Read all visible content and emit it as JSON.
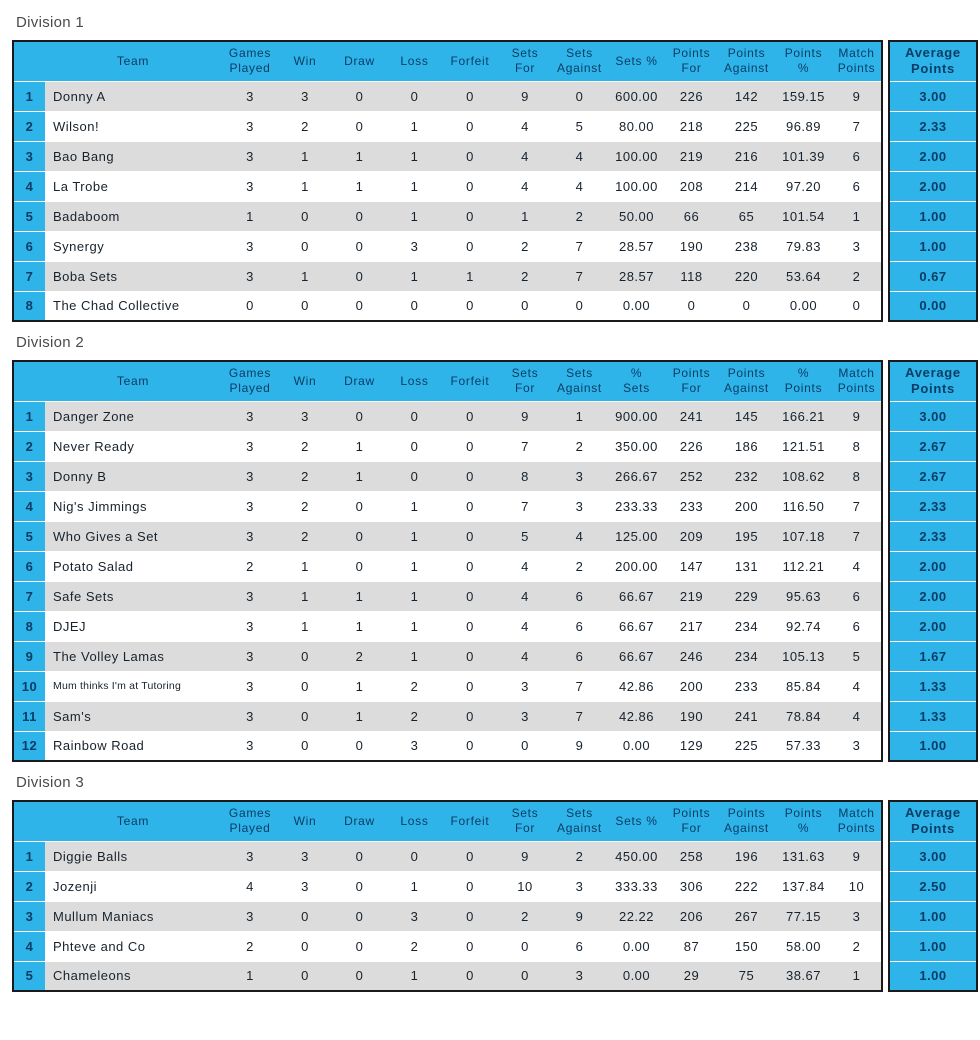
{
  "colors": {
    "accent_cyan": "#2FB4E9",
    "header_navy": "#0A3D66",
    "row_gray": "#DCDCDC",
    "row_white": "#FFFFFF",
    "table_border": "#1A1A1A",
    "cell_text": "#17222C",
    "title_gray": "#4A4A4A"
  },
  "divisions": [
    {
      "title": "Division 1",
      "rank_header": "",
      "columns": [
        "Team",
        "Games\nPlayed",
        "Win",
        "Draw",
        "Loss",
        "Forfeit",
        "Sets\nFor",
        "Sets\nAgainst",
        "Sets %",
        "Points\nFor",
        "Points\nAgainst",
        "Points\n%",
        "Match\nPoints"
      ],
      "average_header": "Average\nPoints",
      "rows": [
        {
          "rank": "1",
          "team": "Donny A",
          "values": [
            "3",
            "3",
            "0",
            "0",
            "0",
            "9",
            "0",
            "600.00",
            "226",
            "142",
            "159.15",
            "9"
          ],
          "average": "3.00"
        },
        {
          "rank": "2",
          "team": "Wilson!",
          "values": [
            "3",
            "2",
            "0",
            "1",
            "0",
            "4",
            "5",
            "80.00",
            "218",
            "225",
            "96.89",
            "7"
          ],
          "average": "2.33"
        },
        {
          "rank": "3",
          "team": "Bao Bang",
          "values": [
            "3",
            "1",
            "1",
            "1",
            "0",
            "4",
            "4",
            "100.00",
            "219",
            "216",
            "101.39",
            "6"
          ],
          "average": "2.00"
        },
        {
          "rank": "4",
          "team": "La Trobe",
          "values": [
            "3",
            "1",
            "1",
            "1",
            "0",
            "4",
            "4",
            "100.00",
            "208",
            "214",
            "97.20",
            "6"
          ],
          "average": "2.00"
        },
        {
          "rank": "5",
          "team": "Badaboom",
          "values": [
            "1",
            "0",
            "0",
            "1",
            "0",
            "1",
            "2",
            "50.00",
            "66",
            "65",
            "101.54",
            "1"
          ],
          "average": "1.00"
        },
        {
          "rank": "6",
          "team": "Synergy",
          "values": [
            "3",
            "0",
            "0",
            "3",
            "0",
            "2",
            "7",
            "28.57",
            "190",
            "238",
            "79.83",
            "3"
          ],
          "average": "1.00"
        },
        {
          "rank": "7",
          "team": "Boba Sets",
          "values": [
            "3",
            "1",
            "0",
            "1",
            "1",
            "2",
            "7",
            "28.57",
            "118",
            "220",
            "53.64",
            "2"
          ],
          "average": "0.67"
        },
        {
          "rank": "8",
          "team": "The Chad Collective",
          "values": [
            "0",
            "0",
            "0",
            "0",
            "0",
            "0",
            "0",
            "0.00",
            "0",
            "0",
            "0.00",
            "0"
          ],
          "average": "0.00"
        }
      ]
    },
    {
      "title": "Division 2",
      "rank_header": "",
      "columns": [
        "Team",
        "Games\nPlayed",
        "Win",
        "Draw",
        "Loss",
        "Forfeit",
        "Sets\nFor",
        "Sets\nAgainst",
        "%\nSets",
        "Points\nFor",
        "Points\nAgainst",
        "%\nPoints",
        "Match\nPoints"
      ],
      "average_header": "Average\nPoints",
      "rows": [
        {
          "rank": "1",
          "team": "Danger Zone",
          "values": [
            "3",
            "3",
            "0",
            "0",
            "0",
            "9",
            "1",
            "900.00",
            "241",
            "145",
            "166.21",
            "9"
          ],
          "average": "3.00"
        },
        {
          "rank": "2",
          "team": "Never Ready",
          "values": [
            "3",
            "2",
            "1",
            "0",
            "0",
            "7",
            "2",
            "350.00",
            "226",
            "186",
            "121.51",
            "8"
          ],
          "average": "2.67"
        },
        {
          "rank": "3",
          "team": "Donny B",
          "values": [
            "3",
            "2",
            "1",
            "0",
            "0",
            "8",
            "3",
            "266.67",
            "252",
            "232",
            "108.62",
            "8"
          ],
          "average": "2.67"
        },
        {
          "rank": "4",
          "team": "Nig's Jimmings",
          "values": [
            "3",
            "2",
            "0",
            "1",
            "0",
            "7",
            "3",
            "233.33",
            "233",
            "200",
            "116.50",
            "7"
          ],
          "average": "2.33"
        },
        {
          "rank": "5",
          "team": "Who Gives a Set",
          "values": [
            "3",
            "2",
            "0",
            "1",
            "0",
            "5",
            "4",
            "125.00",
            "209",
            "195",
            "107.18",
            "7"
          ],
          "average": "2.33"
        },
        {
          "rank": "6",
          "team": "Potato Salad",
          "values": [
            "2",
            "1",
            "0",
            "1",
            "0",
            "4",
            "2",
            "200.00",
            "147",
            "131",
            "112.21",
            "4"
          ],
          "average": "2.00"
        },
        {
          "rank": "7",
          "team": "Safe Sets",
          "values": [
            "3",
            "1",
            "1",
            "1",
            "0",
            "4",
            "6",
            "66.67",
            "219",
            "229",
            "95.63",
            "6"
          ],
          "average": "2.00"
        },
        {
          "rank": "8",
          "team": "DJEJ",
          "values": [
            "3",
            "1",
            "1",
            "1",
            "0",
            "4",
            "6",
            "66.67",
            "217",
            "234",
            "92.74",
            "6"
          ],
          "average": "2.00"
        },
        {
          "rank": "9",
          "team": "The Volley Lamas",
          "values": [
            "3",
            "0",
            "2",
            "1",
            "0",
            "4",
            "6",
            "66.67",
            "246",
            "234",
            "105.13",
            "5"
          ],
          "average": "1.67"
        },
        {
          "rank": "10",
          "team": "Mum thinks I'm at Tutoring",
          "values": [
            "3",
            "0",
            "1",
            "2",
            "0",
            "3",
            "7",
            "42.86",
            "200",
            "233",
            "85.84",
            "4"
          ],
          "average": "1.33"
        },
        {
          "rank": "11",
          "team": "Sam's",
          "values": [
            "3",
            "0",
            "1",
            "2",
            "0",
            "3",
            "7",
            "42.86",
            "190",
            "241",
            "78.84",
            "4"
          ],
          "average": "1.33"
        },
        {
          "rank": "12",
          "team": "Rainbow Road",
          "values": [
            "3",
            "0",
            "0",
            "3",
            "0",
            "0",
            "9",
            "0.00",
            "129",
            "225",
            "57.33",
            "3"
          ],
          "average": "1.00"
        }
      ]
    },
    {
      "title": "Division 3",
      "rank_header": "",
      "columns": [
        "Team",
        "Games\nPlayed",
        "Win",
        "Draw",
        "Loss",
        "Forfeit",
        "Sets\nFor",
        "Sets\nAgainst",
        "Sets %",
        "Points\nFor",
        "Points\nAgainst",
        "Points\n%",
        "Match\nPoints"
      ],
      "average_header": "Average\nPoints",
      "rows": [
        {
          "rank": "1",
          "team": "Diggie Balls",
          "values": [
            "3",
            "3",
            "0",
            "0",
            "0",
            "9",
            "2",
            "450.00",
            "258",
            "196",
            "131.63",
            "9"
          ],
          "average": "3.00"
        },
        {
          "rank": "2",
          "team": "Jozenji",
          "values": [
            "4",
            "3",
            "0",
            "1",
            "0",
            "10",
            "3",
            "333.33",
            "306",
            "222",
            "137.84",
            "10"
          ],
          "average": "2.50"
        },
        {
          "rank": "3",
          "team": "Mullum Maniacs",
          "values": [
            "3",
            "0",
            "0",
            "3",
            "0",
            "2",
            "9",
            "22.22",
            "206",
            "267",
            "77.15",
            "3"
          ],
          "average": "1.00"
        },
        {
          "rank": "4",
          "team": "Phteve and Co",
          "values": [
            "2",
            "0",
            "0",
            "2",
            "0",
            "0",
            "6",
            "0.00",
            "87",
            "150",
            "58.00",
            "2"
          ],
          "average": "1.00"
        },
        {
          "rank": "5",
          "team": "Chameleons",
          "values": [
            "1",
            "0",
            "0",
            "1",
            "0",
            "0",
            "3",
            "0.00",
            "29",
            "75",
            "38.67",
            "1"
          ],
          "average": "1.00"
        }
      ]
    }
  ]
}
